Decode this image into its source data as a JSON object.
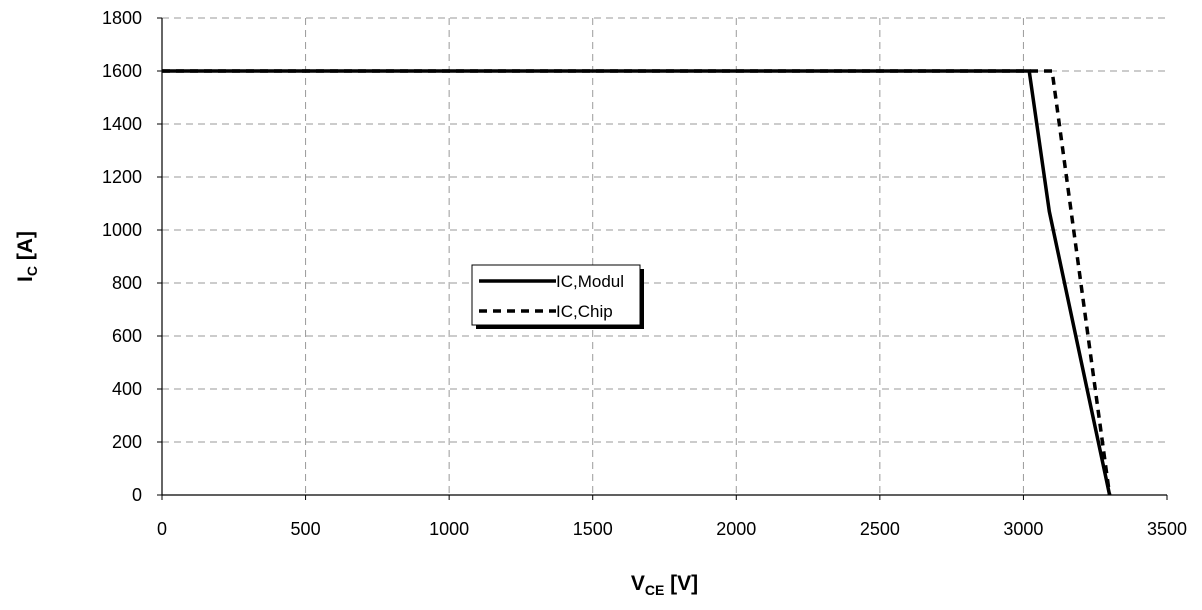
{
  "chart_data": {
    "type": "line",
    "xlabel": {
      "main": "V",
      "sub": "CE",
      "unit": " [V]"
    },
    "ylabel": {
      "main": "I",
      "sub": "C",
      "unit": " [A]"
    },
    "xlim": [
      0,
      3500
    ],
    "ylim": [
      0,
      1800
    ],
    "x_ticks": [
      0,
      500,
      1000,
      1500,
      2000,
      2500,
      3000,
      3500
    ],
    "y_ticks": [
      0,
      200,
      400,
      600,
      800,
      1000,
      1200,
      1400,
      1600,
      1800
    ],
    "grid": true,
    "legend_position": "center-left",
    "series": [
      {
        "name": "IC,Modul",
        "style": "solid",
        "color": "#000000",
        "points": [
          [
            0,
            1600
          ],
          [
            3020,
            1600
          ],
          [
            3090,
            1070
          ],
          [
            3300,
            0
          ]
        ]
      },
      {
        "name": "IC,Chip",
        "style": "dashed",
        "color": "#000000",
        "points": [
          [
            0,
            1600
          ],
          [
            3100,
            1600
          ],
          [
            3300,
            0
          ]
        ]
      }
    ]
  }
}
